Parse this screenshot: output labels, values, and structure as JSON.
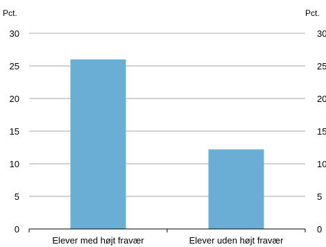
{
  "chart_data": {
    "type": "bar",
    "categories": [
      "Elever med højt fravær",
      "Elever uden højt fravær"
    ],
    "values": [
      26,
      12.2
    ],
    "ylabel_left": "Pct.",
    "ylabel_right": "Pct.",
    "ylim": [
      0,
      30
    ],
    "yticks": [
      "0",
      "5",
      "10",
      "15",
      "20",
      "25",
      "30"
    ],
    "grid": true,
    "bar_color": "#6aaed6",
    "grid_color": "#a6a6a6",
    "axis_color": "#000000"
  }
}
